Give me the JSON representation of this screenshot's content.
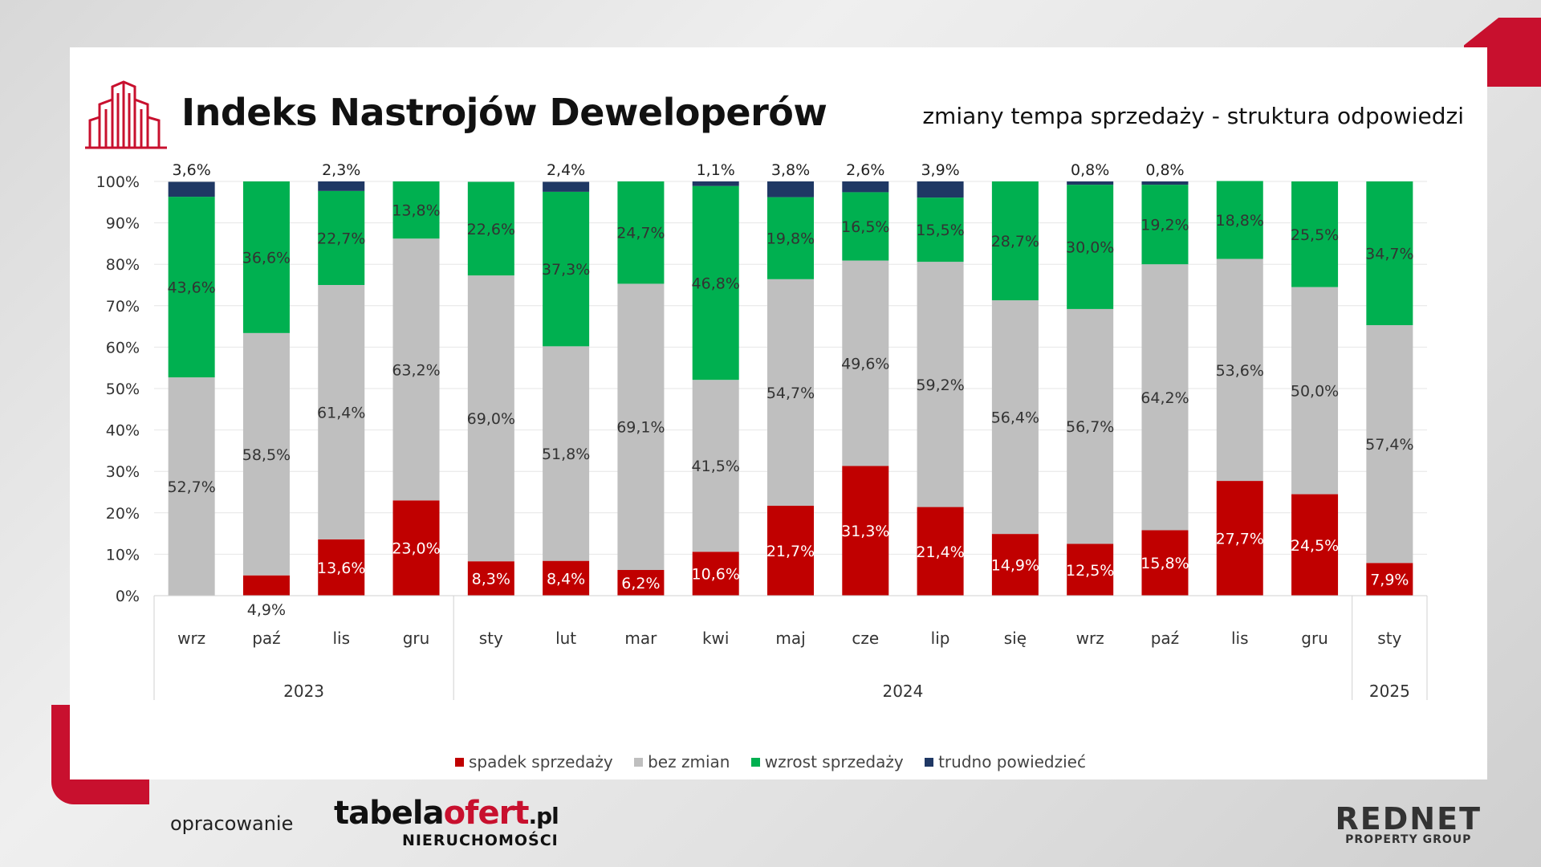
{
  "header": {
    "title": "Indeks Nastrojów Deweloperów",
    "subtitle": "zmiany tempa sprzedaży - struktura odpowiedzi"
  },
  "colors": {
    "spadek": "#c00000",
    "bez_zmian": "#bfbfbf",
    "wzrost": "#00b050",
    "trudno": "#1f3864",
    "accent": "#c8102e"
  },
  "chart_data": {
    "type": "bar",
    "stacked": true,
    "ylim": [
      0,
      100
    ],
    "yticks": [
      "0%",
      "10%",
      "20%",
      "30%",
      "40%",
      "50%",
      "60%",
      "70%",
      "80%",
      "90%",
      "100%"
    ],
    "categories": [
      "wrz",
      "paź",
      "lis",
      "gru",
      "sty",
      "lut",
      "mar",
      "kwi",
      "maj",
      "cze",
      "lip",
      "się",
      "wrz",
      "paź",
      "lis",
      "gru",
      "sty"
    ],
    "groups": [
      {
        "label": "2023",
        "count": 4
      },
      {
        "label": "2024",
        "count": 12
      },
      {
        "label": "2025",
        "count": 1
      }
    ],
    "series": [
      {
        "name": "spadek sprzedaży",
        "color": "#c00000",
        "values": [
          0,
          4.9,
          13.6,
          23.0,
          8.3,
          8.4,
          6.2,
          10.6,
          21.7,
          31.3,
          21.4,
          14.9,
          12.5,
          15.8,
          27.7,
          24.5,
          7.9
        ],
        "labels": [
          "",
          "4,9%",
          "13,6%",
          "23,0%",
          "8,3%",
          "8,4%",
          "6,2%",
          "10,6%",
          "21,7%",
          "31,3%",
          "21,4%",
          "14,9%",
          "12,5%",
          "15,8%",
          "27,7%",
          "24,5%",
          "7,9%"
        ]
      },
      {
        "name": "bez zmian",
        "color": "#bfbfbf",
        "values": [
          52.7,
          58.5,
          61.4,
          63.2,
          69.0,
          51.8,
          69.1,
          41.5,
          54.7,
          49.6,
          59.2,
          56.4,
          56.7,
          64.2,
          53.6,
          50.0,
          57.4
        ],
        "labels": [
          "52,7%",
          "58,5%",
          "61,4%",
          "63,2%",
          "69,0%",
          "51,8%",
          "69,1%",
          "41,5%",
          "54,7%",
          "49,6%",
          "59,2%",
          "56,4%",
          "56,7%",
          "64,2%",
          "53,6%",
          "50,0%",
          "57,4%"
        ]
      },
      {
        "name": "wzrost sprzedaży",
        "color": "#00b050",
        "values": [
          43.6,
          36.6,
          22.7,
          13.8,
          22.6,
          37.3,
          24.7,
          46.8,
          19.8,
          16.5,
          15.5,
          28.7,
          30.0,
          19.2,
          18.8,
          25.5,
          34.7
        ],
        "labels": [
          "43,6%",
          "36,6%",
          "22,7%",
          "13,8%",
          "22,6%",
          "37,3%",
          "24,7%",
          "46,8%",
          "19,8%",
          "16,5%",
          "15,5%",
          "28,7%",
          "30,0%",
          "19,2%",
          "18,8%",
          "25,5%",
          "34,7%"
        ]
      },
      {
        "name": "trudno powiedzieć",
        "color": "#1f3864",
        "values": [
          3.6,
          0,
          2.3,
          0,
          0,
          2.4,
          0,
          1.1,
          3.8,
          2.6,
          3.9,
          0,
          0.8,
          0.8,
          0,
          0,
          0
        ],
        "labels": [
          "3,6%",
          "",
          "2,3%",
          "",
          "",
          "2,4%",
          "",
          "1,1%",
          "3,8%",
          "2,6%",
          "3,9%",
          "",
          "0,8%",
          "0,8%",
          "",
          "",
          ""
        ]
      }
    ],
    "legend": [
      "spadek sprzedaży",
      "bez zmian",
      "wzrost sprzedaży",
      "trudno powiedzieć"
    ],
    "legend_position": "bottom"
  },
  "footer": {
    "prepared_by": "opracowanie",
    "brand1_main": "tabela",
    "brand1_accent": "ofert",
    "brand1_suffix": ".pl",
    "brand1_sub": "NIERUCHOMOŚCI",
    "brand2_main": "REDNET",
    "brand2_sub": "PROPERTY GROUP"
  }
}
